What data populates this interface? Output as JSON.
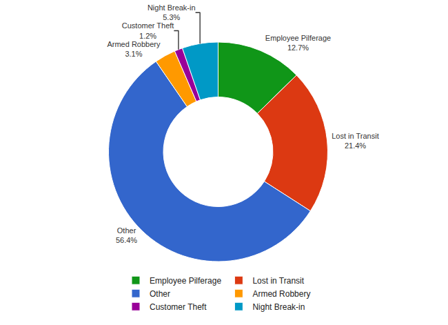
{
  "chart_data": {
    "type": "pie",
    "categories": [
      "Employee Pilferage",
      "Lost in Transit",
      "Other",
      "Armed Robbery",
      "Customer Theft",
      "Night Break-in"
    ],
    "values": [
      12.7,
      21.4,
      56.4,
      3.1,
      1.2,
      5.3
    ],
    "value_labels": [
      "12.7%",
      "21.4%",
      "56.4%",
      "3.1%",
      "1.2%",
      "5.3%"
    ],
    "colors": [
      "#109618",
      "#dc3912",
      "#3366cc",
      "#ff9900",
      "#990099",
      "#0099c6"
    ],
    "data_labels": true,
    "legend": "bottom"
  }
}
